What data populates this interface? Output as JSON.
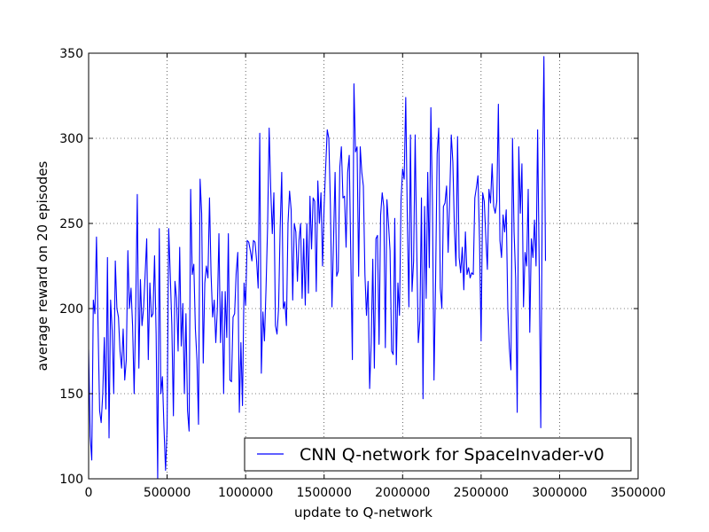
{
  "chart_data": {
    "type": "line",
    "title": "",
    "xlabel": "update to Q-network",
    "ylabel": "average reward on 20 episodes",
    "xlim": [
      0,
      3500000
    ],
    "ylim": [
      100,
      350
    ],
    "xticks": [
      0,
      500000,
      1000000,
      1500000,
      2000000,
      2500000,
      3000000,
      3500000
    ],
    "yticks": [
      100,
      150,
      200,
      250,
      300,
      350
    ],
    "xtick_labels": [
      "0",
      "500000",
      "1000000",
      "1500000",
      "2000000",
      "2500000",
      "3000000",
      "3500000"
    ],
    "ytick_labels": [
      "100",
      "150",
      "200",
      "250",
      "300",
      "350"
    ],
    "grid": true,
    "legend_position": "lower-right",
    "colors": {
      "series": "#0000ff",
      "grid": "#000000",
      "axes": "#000000"
    },
    "series": [
      {
        "name": "CNN Q-network for SpaceInvader-v0",
        "x_start": 0,
        "x_step": 10000,
        "values": [
          176,
          125,
          111,
          205,
          197,
          242,
          190,
          140,
          133,
          150,
          183,
          141,
          230,
          124,
          205,
          187,
          150,
          228,
          200,
          195,
          175,
          165,
          188,
          158,
          170,
          234,
          200,
          212,
          190,
          150,
          200,
          267,
          165,
          217,
          190,
          200,
          220,
          241,
          170,
          215,
          195,
          197,
          231,
          185,
          100,
          247,
          150,
          160,
          130,
          105,
          130,
          247,
          220,
          190,
          137,
          216,
          206,
          175,
          236,
          178,
          203,
          150,
          197,
          140,
          128,
          270,
          220,
          226,
          188,
          170,
          132,
          276,
          256,
          168,
          215,
          225,
          218,
          265,
          220,
          195,
          205,
          180,
          200,
          244,
          180,
          210,
          150,
          210,
          183,
          244,
          158,
          157,
          195,
          197,
          221,
          233,
          139,
          180,
          143,
          215,
          202,
          240,
          239,
          234,
          228,
          240,
          239,
          228,
          212,
          303,
          162,
          198,
          181,
          212,
          248,
          306,
          270,
          244,
          268,
          190,
          185,
          200,
          247,
          280,
          200,
          204,
          190,
          250,
          269,
          258,
          205,
          250,
          245,
          216,
          240,
          250,
          206,
          241,
          202,
          250,
          209,
          266,
          235,
          265,
          263,
          210,
          275,
          250,
          268,
          225,
          260,
          283,
          305,
          300,
          261,
          201,
          240,
          280,
          219,
          222,
          283,
          295,
          265,
          266,
          236,
          280,
          290,
          230,
          170,
          332,
          292,
          295,
          219,
          295,
          280,
          272,
          220,
          196,
          216,
          153,
          180,
          229,
          165,
          241,
          243,
          179,
          255,
          268,
          260,
          177,
          264,
          250,
          234,
          175,
          173,
          253,
          167,
          215,
          196,
          264,
          282,
          276,
          324,
          253,
          201,
          302,
          210,
          228,
          302,
          235,
          180,
          193,
          265,
          147,
          260,
          206,
          280,
          224,
          318,
          262,
          158,
          216,
          291,
          306,
          212,
          200,
          260,
          262,
          272,
          233,
          265,
          302,
          286,
          247,
          225,
          301,
          230,
          221,
          236,
          211,
          245,
          220,
          224,
          218,
          221,
          220,
          265,
          271,
          278,
          240,
          181,
          268,
          263,
          242,
          223,
          270,
          262,
          285,
          260,
          256,
          263,
          320,
          240,
          230,
          255,
          245,
          258,
          200,
          177,
          164,
          300,
          245,
          218,
          139,
          295,
          256,
          285,
          201,
          233,
          225,
          270,
          186,
          241,
          230,
          252,
          225,
          305,
          225,
          130,
          270,
          348,
          228
        ]
      }
    ]
  }
}
